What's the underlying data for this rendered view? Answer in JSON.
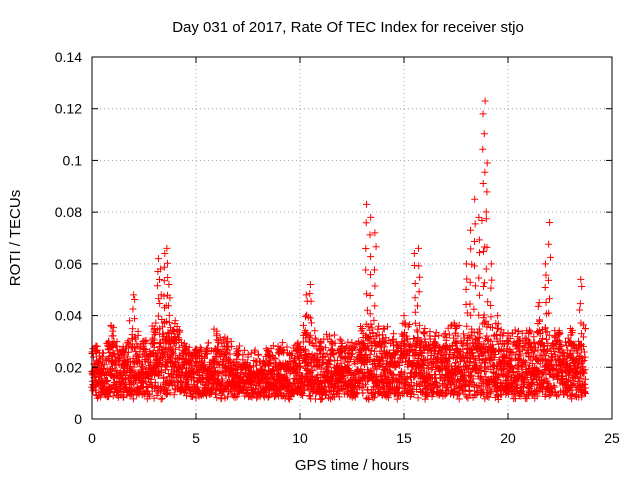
{
  "chart_data": {
    "type": "scatter",
    "title": "Day 031 of 2017, Rate Of TEC Index for receiver stjo",
    "xlabel": "GPS time / hours",
    "ylabel": "ROTI / TECUs",
    "xlim": [
      0,
      25
    ],
    "ylim": [
      0,
      0.14
    ],
    "grid": true,
    "marker": "+",
    "color": "#ff0000",
    "x_ticks": [
      "0",
      "5",
      "10",
      "15",
      "20",
      "25"
    ],
    "y_ticks": [
      "0",
      "0.02",
      "0.04",
      "0.06",
      "0.08",
      "0.1",
      "0.12",
      "0.14"
    ],
    "series": [
      {
        "name": "ROTI",
        "x": [
          0.2,
          0.5,
          0.8,
          1.0,
          1.5,
          2.0,
          2.5,
          3.0,
          3.2,
          3.3,
          3.5,
          3.6,
          3.7,
          4.0,
          4.5,
          5.0,
          5.5,
          6.0,
          6.5,
          7.0,
          7.5,
          8.0,
          8.5,
          9.0,
          9.5,
          10.0,
          10.3,
          10.5,
          11.0,
          11.5,
          12.0,
          12.5,
          13.0,
          13.2,
          13.4,
          13.6,
          14.0,
          14.5,
          15.0,
          15.5,
          15.7,
          16.0,
          16.5,
          17.0,
          17.5,
          18.0,
          18.2,
          18.4,
          18.6,
          18.8,
          18.9,
          19.0,
          19.2,
          19.5,
          20.0,
          20.5,
          21.0,
          21.5,
          21.8,
          22.0,
          22.5,
          23.0,
          23.5
        ],
        "y": [
          0.028,
          0.024,
          0.03,
          0.034,
          0.028,
          0.048,
          0.03,
          0.035,
          0.062,
          0.058,
          0.064,
          0.066,
          0.052,
          0.038,
          0.028,
          0.026,
          0.027,
          0.034,
          0.03,
          0.026,
          0.024,
          0.025,
          0.026,
          0.027,
          0.025,
          0.028,
          0.048,
          0.052,
          0.03,
          0.03,
          0.028,
          0.028,
          0.035,
          0.083,
          0.078,
          0.072,
          0.035,
          0.033,
          0.04,
          0.064,
          0.066,
          0.035,
          0.032,
          0.033,
          0.035,
          0.06,
          0.073,
          0.085,
          0.078,
          0.118,
          0.123,
          0.099,
          0.06,
          0.04,
          0.033,
          0.034,
          0.033,
          0.045,
          0.06,
          0.076,
          0.033,
          0.035,
          0.054
        ]
      }
    ]
  }
}
